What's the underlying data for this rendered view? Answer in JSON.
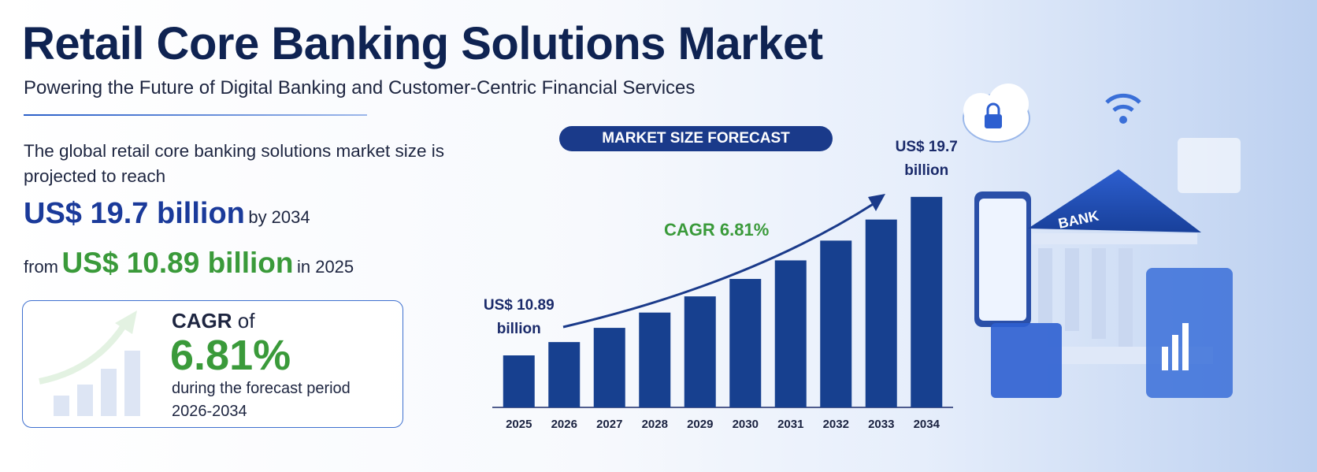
{
  "header": {
    "title": "Retail Core Banking Solutions Market",
    "subtitle": "Powering the Future of Digital Banking and Customer-Centric Financial Services"
  },
  "summary": {
    "intro": "The global retail core banking solutions market size is projected to reach",
    "end_value": "US$ 19.7 billion",
    "end_suffix": "by 2034",
    "start_prefix": "from",
    "start_value": "US$ 10.89 billion",
    "start_suffix": "in 2025"
  },
  "cagr_box": {
    "label": "CAGR",
    "label_suffix": "of",
    "value": "6.81%",
    "caption": "during the forecast period",
    "period": "2026-2034"
  },
  "illustration": {
    "bank_label": "BANK"
  },
  "chart_data": {
    "type": "bar",
    "title": "MARKET SIZE FORECAST",
    "annotation": "CAGR 6.81%",
    "categories": [
      "2025",
      "2026",
      "2027",
      "2028",
      "2029",
      "2030",
      "2031",
      "2032",
      "2033",
      "2034"
    ],
    "values": [
      10.89,
      11.63,
      12.42,
      13.27,
      14.17,
      15.14,
      16.17,
      17.27,
      18.44,
      19.7
    ],
    "value_labels": [
      "US$ 10.89 billion",
      null,
      null,
      null,
      null,
      null,
      null,
      null,
      null,
      "US$ 19.7 billion"
    ],
    "color": "#17408f",
    "ylim": [
      8,
      20
    ]
  }
}
